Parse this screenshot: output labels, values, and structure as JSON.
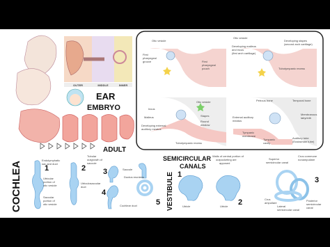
{
  "header": {
    "title_1": "EAR",
    "title_2": "EMBRYO",
    "adult": "ADULT"
  },
  "ear_regions": [
    "OUTER",
    "MIDDLE",
    "INNER"
  ],
  "panels": [
    {
      "labels": [
        [
          "Otic vesicle"
        ],
        [
          "First",
          "pharyngeal",
          "groove"
        ],
        [
          "First",
          "pharyngeal",
          "pouch"
        ]
      ]
    },
    {
      "labels": [
        [
          "Otic vesicle"
        ],
        [
          "Developing malleus",
          "and incus",
          "(first arch cartilage)"
        ],
        [
          "Developing stapes",
          "(second arch cartilage)"
        ],
        [
          "Tubotympanic recess"
        ]
      ]
    },
    {
      "labels": [
        [
          "Incus"
        ],
        [
          "Otic vesicle"
        ],
        [
          "Malleus"
        ],
        [
          "Developing external",
          "auditory meatus"
        ],
        [
          "Stapes"
        ],
        [
          "Round",
          "window"
        ],
        [
          "Tubotympanic recess"
        ]
      ]
    },
    {
      "labels": [
        [
          "Petrous bone"
        ],
        [
          "Temporal bone"
        ],
        [
          "Membranous",
          "labyrinth"
        ],
        [
          "External auditory",
          "meatus"
        ],
        [
          "Tympanic",
          "membrane"
        ],
        [
          "Tympanic",
          "cavity"
        ],
        [
          "Auditory tube",
          "(Eustachian tube)"
        ]
      ]
    }
  ],
  "cochlea": {
    "title": "COCHLEA",
    "steps": [
      "1",
      "2",
      "3",
      "4",
      "5"
    ],
    "labels": [
      [
        "Endolymphatic",
        "sac and duct"
      ],
      [
        "Utricular",
        "portion of",
        "otic vesicle"
      ],
      [
        "Saccular",
        "portion of",
        "otic vesicle"
      ],
      [
        "Tubular",
        "outgrowth of",
        "saccule"
      ],
      [
        "Utriculosaccular",
        "duct"
      ],
      [
        "Saccule"
      ],
      [
        "Ductus reuniens"
      ],
      [
        "Cochlear duct"
      ]
    ]
  },
  "vestibule": {
    "title": "VESTIBULE",
    "subtitle_1": "SEMICIRCULAR",
    "subtitle_2": "CANALS",
    "steps": [
      "1",
      "2",
      "3"
    ],
    "labels": [
      [
        "Walls of central portion of",
        "outpocketing are",
        "apposed"
      ],
      [
        "Utricle"
      ],
      [
        "Utricle"
      ],
      [
        "Superior",
        "semicircular canal"
      ],
      [
        "Crus commune",
        "nonampullare"
      ],
      [
        "Crus",
        "ampullare"
      ],
      [
        "Lateral",
        "semicircular canal"
      ],
      [
        "Posterior",
        "semicircular",
        "canal"
      ]
    ]
  }
}
